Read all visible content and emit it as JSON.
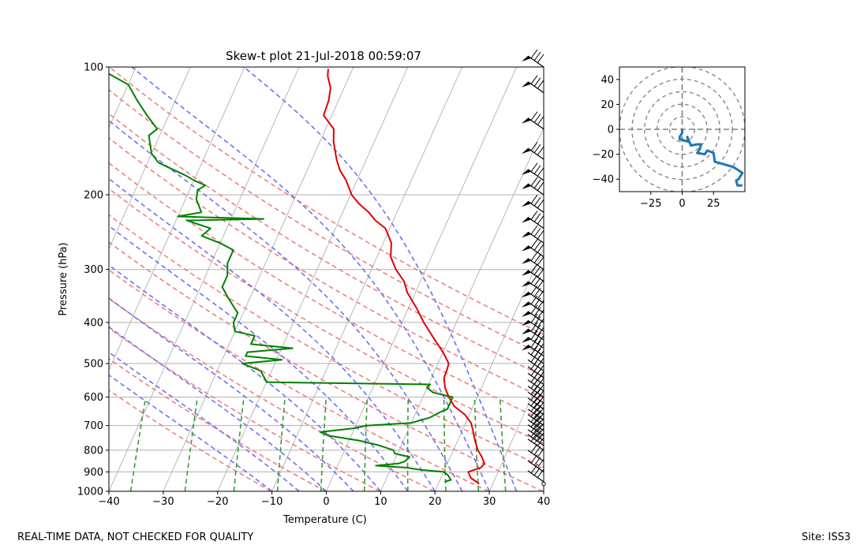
{
  "footer": {
    "left_note": "REAL-TIME DATA, NOT CHECKED FOR QUALITY",
    "right_note": "Site: ISS3"
  },
  "colors": {
    "temperature": "#e00000",
    "dewpoint": "#008000",
    "dry_adiabat": "#f08080",
    "moist_adiabat": "#7070f0",
    "mixing_ratio": "#3a9a3a",
    "isotherm_grid": "#b0b0b0",
    "hodograph": "#1f77b4"
  },
  "chart_data": [
    {
      "type": "line",
      "chart": "skew-t",
      "title": "Skew-t plot 21-Jul-2018 00:59:07",
      "xlabel": "Temperature (C)",
      "ylabel": "Pressure (hPa)",
      "xlim": [
        -40,
        40
      ],
      "ylim": [
        1000,
        100
      ],
      "y_scale": "log",
      "skew_deg_per_decade": 35,
      "x_ticks": [
        -40,
        -30,
        -20,
        -10,
        0,
        10,
        20,
        30,
        40
      ],
      "y_ticks": [
        1000,
        900,
        800,
        700,
        600,
        500,
        400,
        300,
        200,
        100
      ],
      "grid": true,
      "series": [
        {
          "key": "temperature",
          "points": [
            [
              960,
              27.5
            ],
            [
              930,
              25.5
            ],
            [
              900,
              24.5
            ],
            [
              880,
              26.5
            ],
            [
              860,
              26.8
            ],
            [
              830,
              25.8
            ],
            [
              800,
              24.5
            ],
            [
              760,
              23.2
            ],
            [
              720,
              22
            ],
            [
              690,
              21
            ],
            [
              660,
              19.2
            ],
            [
              630,
              16.5
            ],
            [
              600,
              14.8
            ],
            [
              570,
              13.3
            ],
            [
              540,
              12.3
            ],
            [
              520,
              12.2
            ],
            [
              500,
              12
            ],
            [
              470,
              10
            ],
            [
              440,
              7.5
            ],
            [
              400,
              4
            ],
            [
              370,
              1.5
            ],
            [
              340,
              -1.5
            ],
            [
              320,
              -3
            ],
            [
              300,
              -5.5
            ],
            [
              280,
              -7.5
            ],
            [
              260,
              -8.5
            ],
            [
              240,
              -10.8
            ],
            [
              230,
              -13.3
            ],
            [
              220,
              -15.2
            ],
            [
              210,
              -17.7
            ],
            [
              200,
              -19.8
            ],
            [
              185,
              -22
            ],
            [
              175,
              -24
            ],
            [
              165,
              -25.5
            ],
            [
              150,
              -27.5
            ],
            [
              140,
              -28.5
            ],
            [
              130,
              -31.5
            ],
            [
              120,
              -31.8
            ],
            [
              112,
              -32.5
            ],
            [
              105,
              -34
            ],
            [
              101,
              -34.5
            ]
          ]
        },
        {
          "key": "dewpoint",
          "points": [
            [
              950,
              21
            ],
            [
              940,
              22
            ],
            [
              915,
              21
            ],
            [
              900,
              20
            ],
            [
              890,
              15.5
            ],
            [
              880,
              13
            ],
            [
              870,
              7
            ],
            [
              860,
              11
            ],
            [
              850,
              12
            ],
            [
              830,
              12.5
            ],
            [
              815,
              9.5
            ],
            [
              800,
              9
            ],
            [
              780,
              6
            ],
            [
              760,
              2
            ],
            [
              740,
              -4
            ],
            [
              725,
              -6
            ],
            [
              710,
              0
            ],
            [
              700,
              2
            ],
            [
              690,
              10
            ],
            [
              670,
              13
            ],
            [
              650,
              14.5
            ],
            [
              640,
              15.5
            ],
            [
              620,
              15.5
            ],
            [
              600,
              15.5
            ],
            [
              585,
              11.5
            ],
            [
              570,
              10
            ],
            [
              560,
              10.3
            ],
            [
              553,
              -20
            ],
            [
              520,
              -22
            ],
            [
              500,
              -26
            ],
            [
              490,
              -19
            ],
            [
              480,
              -26
            ],
            [
              470,
              -26
            ],
            [
              460,
              -18
            ],
            [
              450,
              -26
            ],
            [
              430,
              -26
            ],
            [
              420,
              -30
            ],
            [
              400,
              -31
            ],
            [
              380,
              -31
            ],
            [
              370,
              -32
            ],
            [
              350,
              -34
            ],
            [
              330,
              -36
            ],
            [
              310,
              -36
            ],
            [
              290,
              -37
            ],
            [
              270,
              -37
            ],
            [
              260,
              -40
            ],
            [
              250,
              -44
            ],
            [
              240,
              -43
            ],
            [
              230,
              -48
            ],
            [
              228,
              -34
            ],
            [
              225,
              -50
            ],
            [
              220,
              -46
            ],
            [
              205,
              -48
            ],
            [
              195,
              -48.5
            ],
            [
              190,
              -47.5
            ],
            [
              185,
              -50
            ],
            [
              180,
              -52
            ],
            [
              172,
              -56
            ],
            [
              168,
              -58
            ],
            [
              160,
              -60
            ],
            [
              145,
              -62
            ],
            [
              140,
              -61
            ],
            [
              130,
              -64
            ],
            [
              120,
              -67
            ],
            [
              110,
              -70
            ],
            [
              103,
              -75
            ],
            [
              100,
              -78
            ]
          ]
        }
      ],
      "reference_lines": {
        "isotherms_c": [
          -130,
          -120,
          -110,
          -100,
          -90,
          -80,
          -70,
          -60,
          -50,
          -40,
          -30,
          -20,
          -10,
          0,
          10,
          20,
          30,
          40
        ],
        "dry_adiabats_theta_k": [
          263,
          273,
          283,
          293,
          303,
          313,
          323,
          333,
          343,
          353,
          363,
          373,
          383
        ],
        "moist_adiabats_start_c": [
          -10,
          -5,
          0,
          5,
          10,
          15,
          20,
          25,
          30,
          35
        ],
        "mixing_ratio_lines": {
          "p_range": [
            1000,
            600
          ],
          "start_c": [
            -36,
            -26,
            -17,
            -9,
            -1,
            7,
            15,
            22,
            28,
            33
          ]
        }
      },
      "wind_barbs": {
        "location": "right edge",
        "levels_hpa": [
          100,
          115,
          140,
          165,
          185,
          200,
          220,
          240,
          260,
          280,
          300,
          320,
          340,
          360,
          380,
          400,
          420,
          440,
          460,
          480,
          500,
          520,
          540,
          560,
          580,
          600,
          620,
          640,
          660,
          680,
          700,
          720,
          740,
          760,
          780,
          800,
          850,
          900,
          950
        ]
      }
    },
    {
      "type": "line",
      "chart": "hodograph",
      "xlim": [
        -50,
        50
      ],
      "ylim": [
        -50,
        50
      ],
      "x_ticks": [
        -25,
        0,
        25
      ],
      "y_ticks": [
        40,
        20,
        0,
        -20,
        -40
      ],
      "rings": [
        10,
        20,
        30,
        40,
        50
      ],
      "points": [
        [
          0,
          0
        ],
        [
          0,
          -3
        ],
        [
          -2,
          -6
        ],
        [
          -2,
          -8
        ],
        [
          2,
          -9
        ],
        [
          5,
          -10
        ],
        [
          4,
          -6
        ],
        [
          7,
          -13
        ],
        [
          12,
          -12
        ],
        [
          15,
          -12
        ],
        [
          14,
          -16
        ],
        [
          12,
          -19
        ],
        [
          18,
          -20
        ],
        [
          20,
          -17
        ],
        [
          25,
          -19
        ],
        [
          26,
          -26
        ],
        [
          33,
          -28
        ],
        [
          40,
          -30
        ],
        [
          42,
          -31
        ],
        [
          48,
          -35
        ],
        [
          45,
          -40
        ],
        [
          43,
          -41
        ],
        [
          44,
          -45
        ],
        [
          48,
          -45
        ]
      ]
    }
  ]
}
